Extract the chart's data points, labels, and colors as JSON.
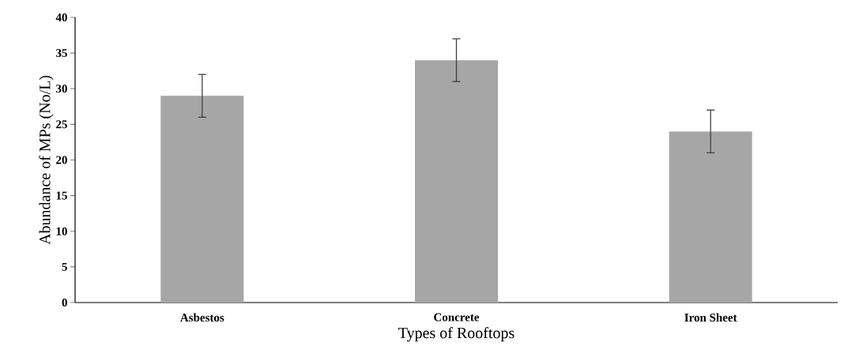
{
  "chart_data": {
    "type": "bar",
    "xlabel": "Types of Rooftops",
    "ylabel": "Abundance of MPs (No/L)",
    "categories": [
      "Asbestos",
      "Concrete",
      "Iron Sheet"
    ],
    "values": [
      29,
      34,
      24
    ],
    "errors": [
      3,
      3,
      3
    ],
    "color": "#a6a6a6",
    "ylim": [
      0,
      40
    ],
    "yticks": [
      0,
      5,
      10,
      15,
      20,
      25,
      30,
      35,
      40
    ],
    "grid": false
  }
}
